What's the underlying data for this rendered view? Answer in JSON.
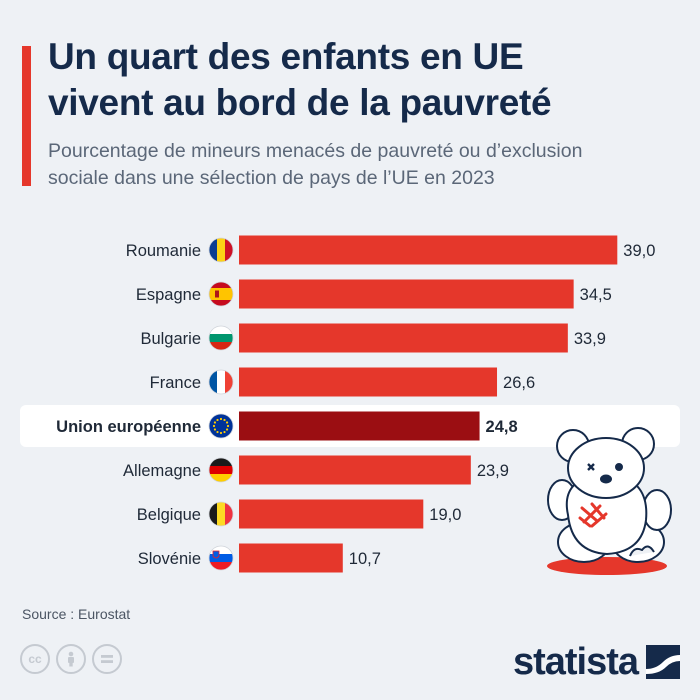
{
  "header": {
    "title_line1": "Un quart des enfants en UE",
    "title_line2": "vivent au bord de la pauvreté",
    "subtitle_line1": "Pourcentage de mineurs menacés de pauvreté ou d’exclusion",
    "subtitle_line2": "sociale dans une sélection de pays de l’UE en 2023"
  },
  "chart_data": {
    "type": "bar",
    "orientation": "horizontal",
    "categories": [
      "Roumanie",
      "Espagne",
      "Bulgarie",
      "France",
      "Union européenne",
      "Allemagne",
      "Belgique",
      "Slovénie"
    ],
    "values": [
      39.0,
      34.5,
      33.9,
      26.6,
      24.8,
      23.9,
      19.0,
      10.7
    ],
    "value_labels": [
      "39,0",
      "34,5",
      "33,9",
      "26,6",
      "24,8",
      "23,9",
      "19,0",
      "10,7"
    ],
    "highlighted_category": "Union européenne",
    "xlim": [
      0,
      40
    ],
    "grid": false,
    "legend": "none",
    "flags": [
      "romania-flag-icon",
      "spain-flag-icon",
      "bulgaria-flag-icon",
      "france-flag-icon",
      "eu-flag-icon",
      "germany-flag-icon",
      "belgium-flag-icon",
      "slovenia-flag-icon"
    ]
  },
  "colors": {
    "bar": "#e5372b",
    "highlight_bar": "#9b0e12",
    "title": "#152a4a",
    "background": "#eef1f5"
  },
  "footer": {
    "source": "Source : Eurostat",
    "brand": "statista",
    "license_icons": [
      "cc-icon",
      "attribution-icon",
      "no-derivatives-icon"
    ]
  }
}
